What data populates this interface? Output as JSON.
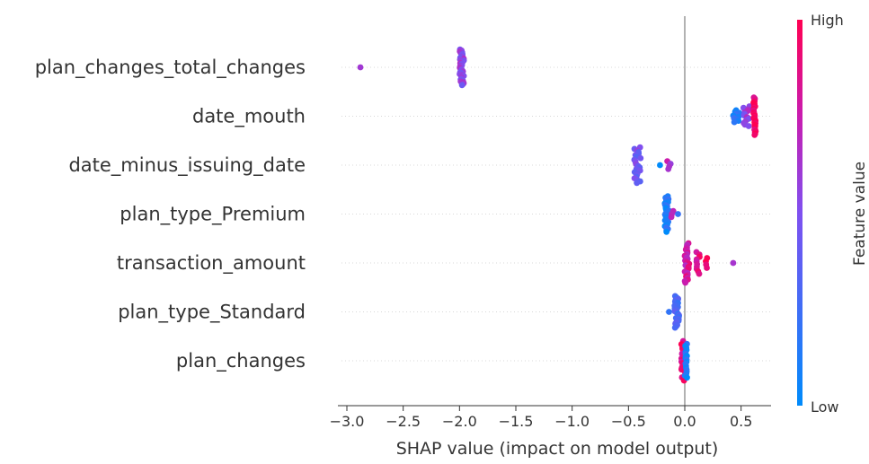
{
  "chart_data": {
    "type": "scatter",
    "subtype": "shap-beeswarm",
    "title": "",
    "xlabel": "SHAP value (impact on model output)",
    "xlim": [
      -3.1,
      0.8
    ],
    "xticks": [
      -3.0,
      -2.5,
      -2.0,
      -1.5,
      -1.0,
      -0.5,
      0.0,
      0.5
    ],
    "xtick_labels": [
      "−3.0",
      "−2.5",
      "−2.0",
      "−1.5",
      "−1.0",
      "−0.5",
      "0.0",
      "0.5"
    ],
    "colorbar": {
      "title": "Feature value",
      "high_label": "High",
      "low_label": "Low",
      "low_color": "#008bfb",
      "high_color": "#ff0052"
    },
    "zero_line": true,
    "features": [
      {
        "name": "plan_changes_total_changes",
        "clusters": [
          {
            "x": -2.88,
            "n": 1,
            "color": 0.6,
            "spread": 0
          },
          {
            "x": -1.98,
            "n": 40,
            "color": 0.55,
            "spread": 0.02,
            "height": 0.9
          }
        ]
      },
      {
        "name": "date_mouth",
        "clusters": [
          {
            "x": 0.47,
            "n": 10,
            "color": 0.1,
            "spread": 0.04,
            "height": 0.3
          },
          {
            "x": 0.55,
            "n": 14,
            "color": 0.6,
            "spread": 0.03,
            "height": 0.5
          },
          {
            "x": 0.62,
            "n": 30,
            "color": 0.95,
            "spread": 0.01,
            "height": 0.95
          }
        ]
      },
      {
        "name": "date_minus_issuing_date",
        "clusters": [
          {
            "x": -0.42,
            "n": 24,
            "color": 0.45,
            "spread": 0.03,
            "height": 0.9
          },
          {
            "x": -0.22,
            "n": 1,
            "color": 0.1,
            "spread": 0
          },
          {
            "x": -0.14,
            "n": 4,
            "color": 0.7,
            "spread": 0.02,
            "height": 0.2
          }
        ]
      },
      {
        "name": "plan_type_Premium",
        "clusters": [
          {
            "x": -0.16,
            "n": 26,
            "color": 0.1,
            "spread": 0.02,
            "height": 0.9
          },
          {
            "x": -0.11,
            "n": 3,
            "color": 0.75,
            "spread": 0.01,
            "height": 0.15
          },
          {
            "x": -0.06,
            "n": 1,
            "color": 0.1,
            "spread": 0
          }
        ]
      },
      {
        "name": "transaction_amount",
        "clusters": [
          {
            "x": 0.02,
            "n": 26,
            "color": 0.8,
            "spread": 0.02,
            "height": 1.0
          },
          {
            "x": 0.13,
            "n": 10,
            "color": 0.85,
            "spread": 0.03,
            "height": 0.55
          },
          {
            "x": 0.19,
            "n": 4,
            "color": 0.95,
            "spread": 0.01,
            "height": 0.25
          },
          {
            "x": 0.43,
            "n": 1,
            "color": 0.65,
            "spread": 0
          }
        ]
      },
      {
        "name": "plan_type_Standard",
        "clusters": [
          {
            "x": -0.14,
            "n": 1,
            "color": 0.1,
            "spread": 0
          },
          {
            "x": -0.07,
            "n": 24,
            "color": 0.3,
            "spread": 0.02,
            "height": 0.8
          }
        ]
      },
      {
        "name": "plan_changes",
        "clusters": [
          {
            "x": -0.01,
            "n": 26,
            "color": 0.9,
            "spread": 0.02,
            "height": 1.0
          },
          {
            "x": 0.01,
            "n": 18,
            "color": 0.1,
            "spread": 0.01,
            "height": 0.85
          }
        ]
      }
    ]
  }
}
